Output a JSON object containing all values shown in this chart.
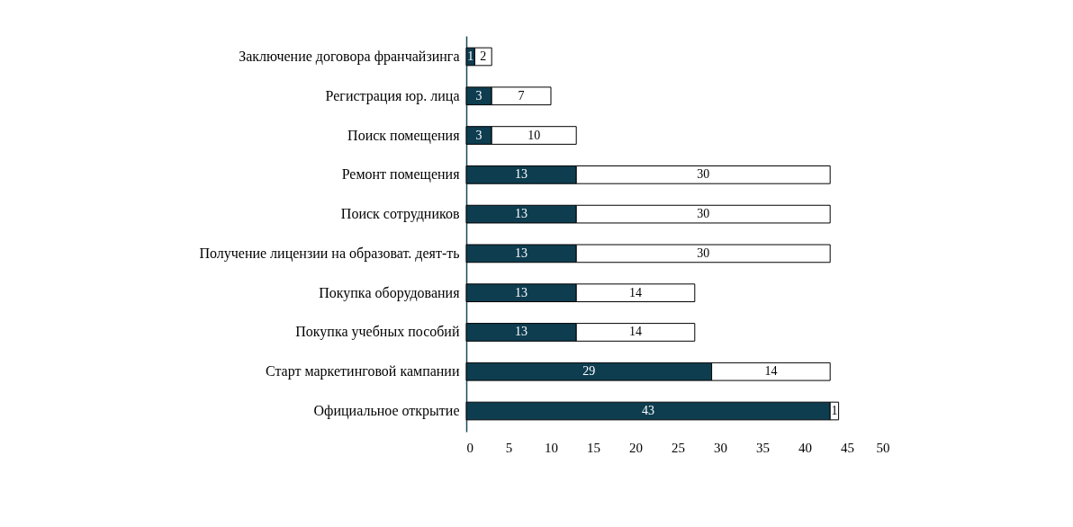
{
  "chart_data": {
    "type": "bar",
    "orientation": "horizontal",
    "stacked": true,
    "data_labels": true,
    "grid": false,
    "categories": [
      "Заключение договора франчайзинга",
      "Регистрация юр. лица",
      "Поиск помещения",
      "Ремонт помещения",
      "Поиск сотрудников",
      "Получение лицензии на образоват. деят-ть",
      "Покупка оборудования",
      "Покупка учебных пособий",
      "Старт маркетинговой кампании",
      "Официальное открытие"
    ],
    "series": [
      {
        "color": "#0e3d50",
        "values": [
          1,
          3,
          3,
          13,
          13,
          13,
          13,
          13,
          29,
          43
        ]
      },
      {
        "color": "#ffffff",
        "values": [
          2,
          7,
          10,
          30,
          30,
          30,
          14,
          14,
          14,
          1
        ]
      }
    ],
    "xlim": [
      0,
      50
    ],
    "xticks": [
      0,
      5,
      10,
      15,
      20,
      25,
      30,
      35,
      40,
      45,
      50
    ]
  }
}
